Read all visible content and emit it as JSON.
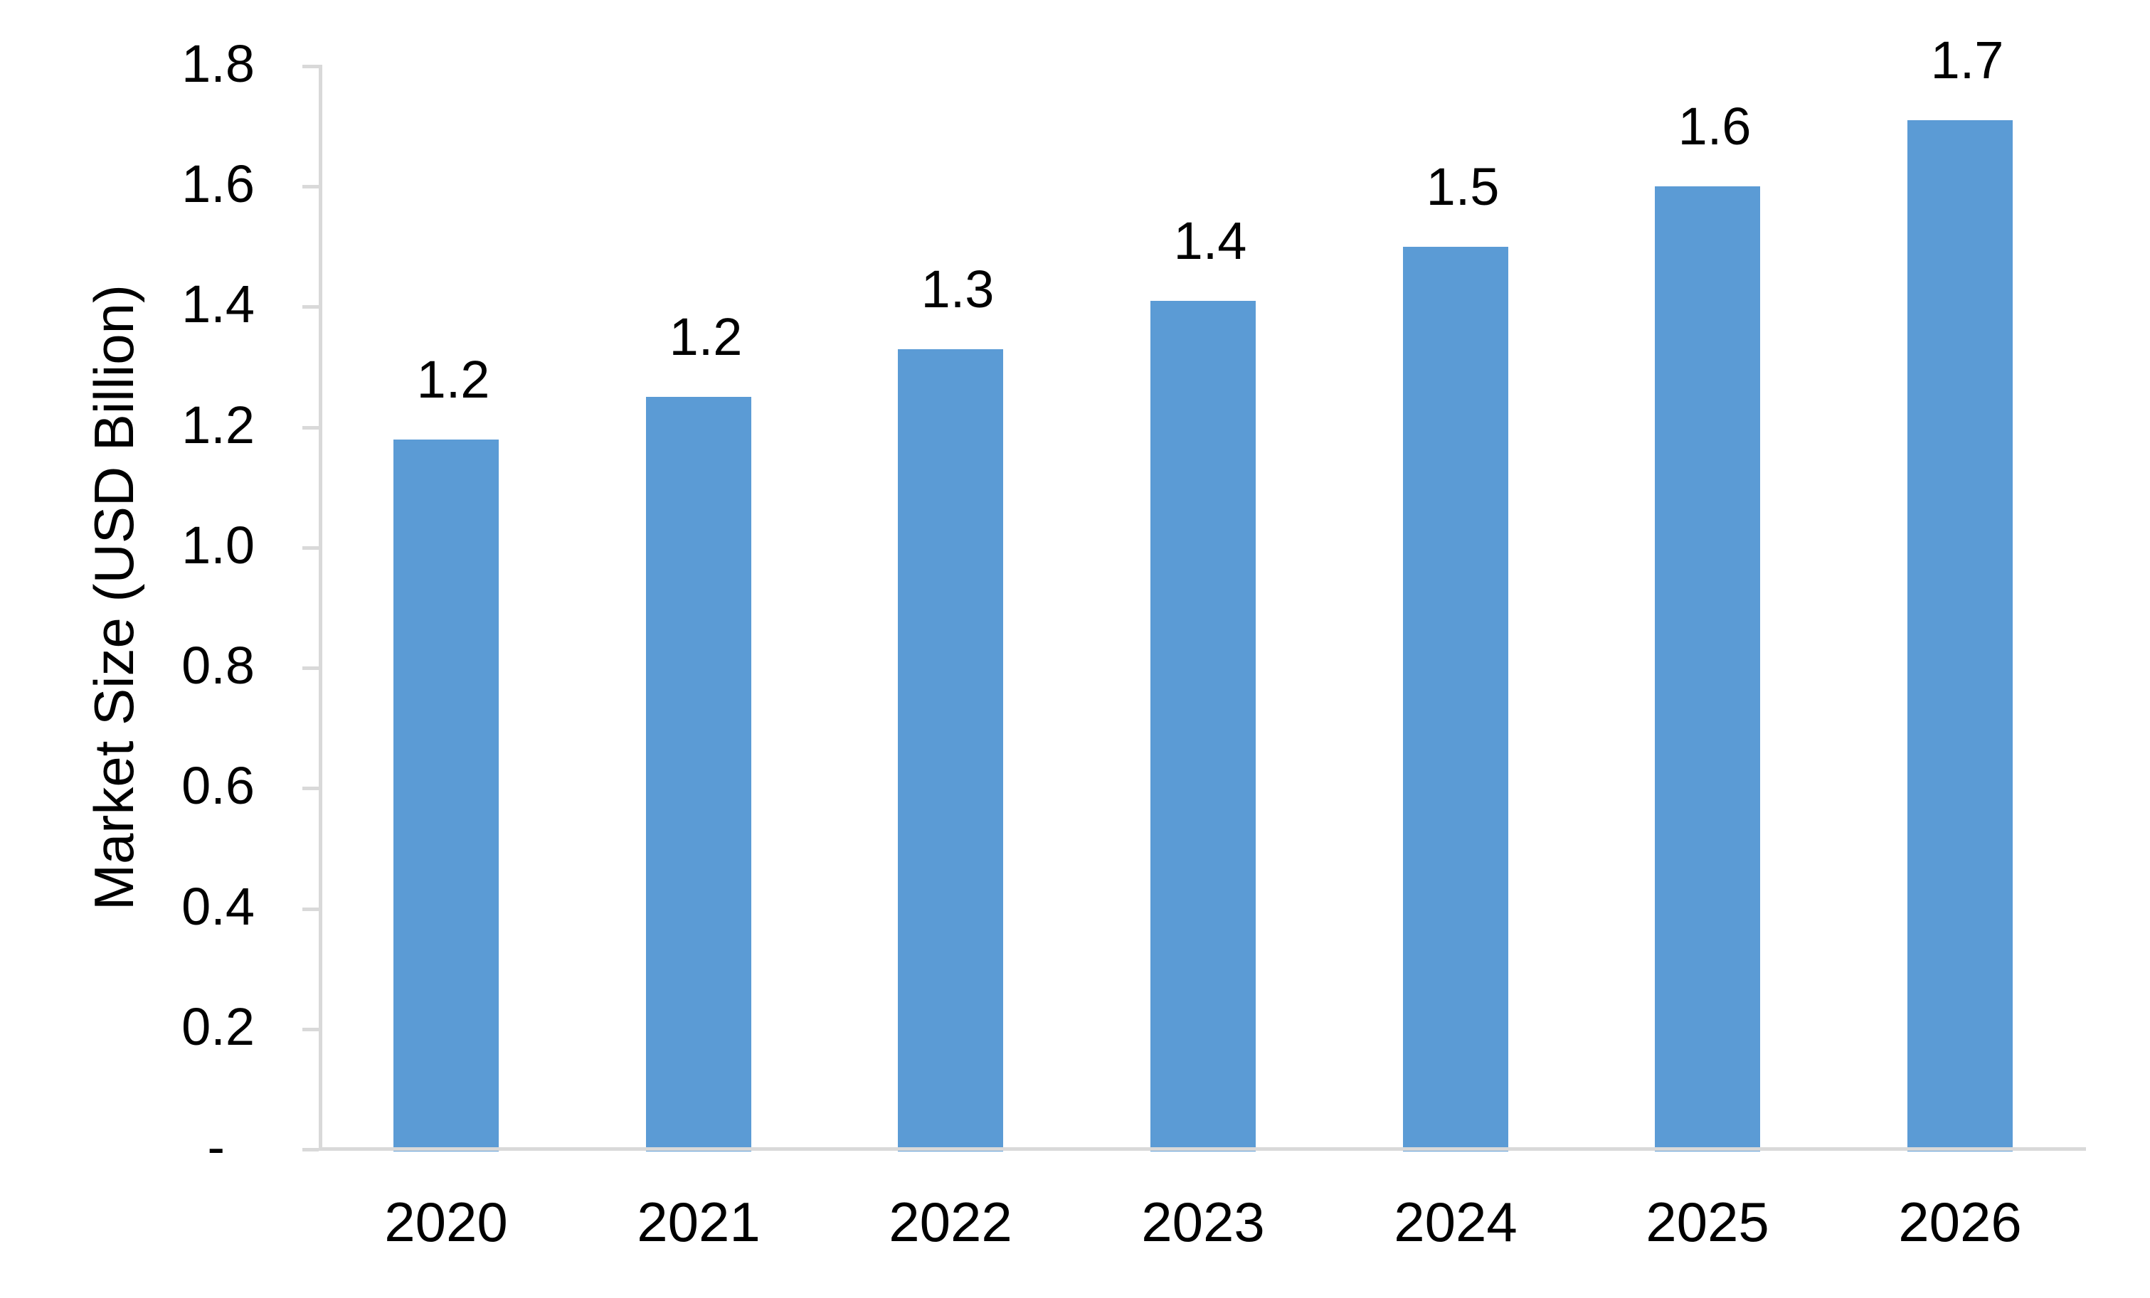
{
  "chart_data": {
    "type": "bar",
    "title": "",
    "categories": [
      "2020",
      "2021",
      "2022",
      "2023",
      "2024",
      "2025",
      "2026"
    ],
    "values": [
      1.18,
      1.25,
      1.33,
      1.41,
      1.5,
      1.6,
      1.71
    ],
    "data_labels": [
      "1.2",
      "1.2",
      "1.3",
      "1.4",
      "1.5",
      "1.6",
      "1.7"
    ],
    "xlabel": "",
    "ylabel": "Market Size (USD Billion)",
    "ylim": [
      0,
      1.8
    ],
    "ytick_step": 0.2,
    "ytick_labels": [
      "-",
      "0.2",
      "0.4",
      "0.6",
      "0.8",
      "1.0",
      "1.2",
      "1.4",
      "1.6",
      "1.8"
    ],
    "grid": false,
    "legend": false,
    "bar_color": "#5B9BD5",
    "axis_color": "#D9D9D9",
    "text_color": "#000000"
  }
}
